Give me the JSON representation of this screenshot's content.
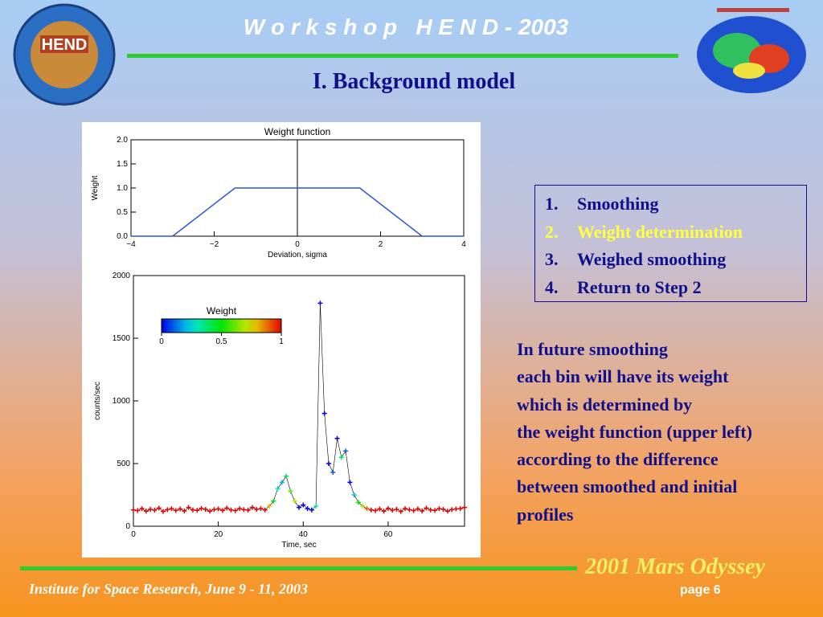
{
  "header": {
    "title": "W o r k s h o p   H E N D - 2003",
    "subtitle": "I. Background model",
    "logo": "HEND"
  },
  "chart_data": [
    {
      "type": "line",
      "title": "Weight function",
      "x_label": "Deviation, sigma",
      "y_label": "Weight",
      "xlim": [
        -4,
        4
      ],
      "ylim": [
        0,
        2
      ],
      "xticks": [
        {
          "value": -4,
          "label": "−4"
        },
        {
          "value": -2,
          "label": "−2"
        },
        0,
        2,
        4
      ],
      "yticks": [
        {
          "value": 0,
          "label": "0.0"
        },
        {
          "value": 0.5,
          "label": "0.5"
        },
        {
          "value": 1,
          "label": "1.0"
        },
        {
          "value": 1.5,
          "label": "1.5"
        },
        {
          "value": 2,
          "label": "2.0"
        }
      ],
      "series": [
        {
          "color": "#2a55d8",
          "x": [
            -4,
            -3,
            -1.5,
            1.5,
            3,
            4
          ],
          "values": [
            0,
            0,
            1,
            1,
            0,
            0
          ]
        }
      ]
    },
    {
      "type": "line",
      "x_label": "Time, sec",
      "y_label": "counts/sec",
      "xlim": [
        0,
        78
      ],
      "ylim": [
        0,
        2000
      ],
      "xticks": [
        0,
        20,
        40,
        60
      ],
      "yticks": [
        0,
        500,
        1000,
        1500,
        2000
      ],
      "colorbar": {
        "title": "Weight",
        "ticks": [
          0,
          0.5,
          1
        ]
      },
      "series": [
        {
          "color": "#000000",
          "x": [
            0,
            1,
            2,
            3,
            4,
            5,
            6,
            7,
            8,
            9,
            10,
            11,
            12,
            13,
            14,
            15,
            16,
            17,
            18,
            19,
            20,
            21,
            22,
            23,
            24,
            25,
            26,
            27,
            28,
            29,
            30,
            31,
            32,
            33,
            34,
            35,
            36,
            37,
            38,
            39,
            40,
            41,
            42,
            43,
            44,
            45,
            46,
            47,
            48,
            49,
            50,
            51,
            52,
            53,
            54,
            55,
            56,
            57,
            58,
            59,
            60,
            61,
            62,
            63,
            64,
            65,
            66,
            67,
            68,
            69,
            70,
            71,
            72,
            73,
            74,
            75,
            76,
            77,
            78
          ],
          "values": [
            130,
            125,
            140,
            120,
            135,
            128,
            145,
            118,
            132,
            140,
            125,
            138,
            122,
            150,
            130,
            127,
            142,
            135,
            120,
            133,
            138,
            126,
            145,
            130,
            124,
            140,
            132,
            128,
            150,
            135,
            140,
            130,
            160,
            200,
            300,
            350,
            400,
            280,
            200,
            150,
            170,
            140,
            130,
            160,
            1780,
            900,
            500,
            430,
            700,
            550,
            600,
            350,
            250,
            190,
            160,
            140,
            130,
            125,
            138,
            120,
            142,
            128,
            135,
            118,
            140,
            132,
            125,
            138,
            122,
            145,
            130,
            127,
            140,
            135,
            120,
            133,
            138,
            140,
            150
          ],
          "weights": [
            1,
            1,
            1,
            1,
            1,
            1,
            1,
            1,
            1,
            1,
            1,
            1,
            1,
            1,
            1,
            1,
            1,
            1,
            1,
            1,
            1,
            1,
            1,
            1,
            1,
            1,
            1,
            1,
            1,
            1,
            1,
            1,
            0.8,
            0.5,
            0.3,
            0.2,
            0.4,
            0.6,
            0.7,
            0,
            0,
            0,
            0,
            0.3,
            0,
            0,
            0,
            0.1,
            0,
            0.4,
            0.1,
            0,
            0.2,
            0.5,
            0.7,
            0.9,
            1,
            1,
            1,
            1,
            1,
            1,
            1,
            1,
            1,
            1,
            1,
            1,
            1,
            1,
            1,
            1,
            1,
            1,
            1,
            1,
            1,
            1,
            1
          ]
        }
      ]
    }
  ],
  "steps": [
    {
      "number": "1.",
      "text": "Smoothing",
      "color": "#10108a"
    },
    {
      "number": "2.",
      "text": "Weight determination",
      "color": "#ffff40"
    },
    {
      "number": "3.",
      "text": "Weighed smoothing",
      "color": "#10108a"
    },
    {
      "number": "4.",
      "text": "Return to Step 2",
      "color": "#10108a"
    }
  ],
  "paragraph": [
    "In future smoothing",
    "each bin will have its weight",
    "which is determined by",
    "the weight function (upper left)",
    "according to the difference",
    "between smoothed and initial",
    "profiles"
  ],
  "footer": {
    "mission": "2001 Mars Odyssey",
    "institute": "Institute for Space Research, June 9 - 11, 2003",
    "page": "page 6"
  }
}
